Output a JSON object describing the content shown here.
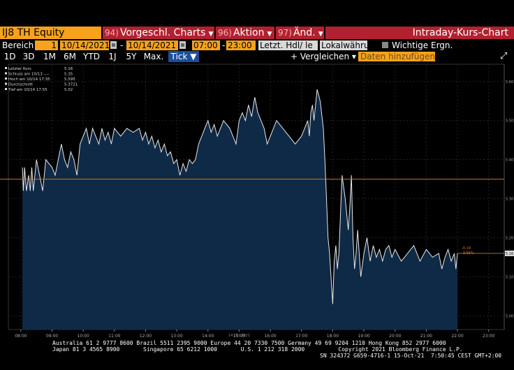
{
  "toolbar": {
    "ticker": "IJ8 TH Equity",
    "menus": [
      {
        "num": "94)",
        "label": "Vorgeschl. Charts"
      },
      {
        "num": "96)",
        "label": "Aktion"
      },
      {
        "num": "97)",
        "label": "Änd."
      }
    ],
    "title": "Intraday-Kurs-Chart"
  },
  "range": {
    "bereich_label": "Bereich",
    "bereich_value": "1",
    "start_date": "10/14/2021",
    "end_date": "10/14/2021",
    "start_time": "07:00",
    "end_time": "23:00",
    "price_type": "Letzt. Hdl/ le",
    "currency": "Lokalwähru",
    "important_events_label": "Wichtige Ergn."
  },
  "periods": [
    "1D",
    "3D",
    "1M",
    "6M",
    "YTD",
    "1J",
    "5Y",
    "Max.",
    "Tick ▼"
  ],
  "active_period": "Tick ▼",
  "compare_label": "+ Vergleichen ▾",
  "add_data_placeholder": "Daten hinzufügen",
  "legend": [
    {
      "label": "Letzter Kurs",
      "value": "5.16"
    },
    {
      "label": "Schluss am 10/13 ----",
      "value": "5.35"
    },
    {
      "label": "Hoch am 10/14 17:35",
      "value": "5.595"
    },
    {
      "label": "Durchschnitt",
      "value": "5.3721"
    },
    {
      "label": "Tief am 10/14 17:55",
      "value": "5.02"
    }
  ],
  "chart_data": {
    "type": "area",
    "x_labels": [
      "08:00",
      "09:00",
      "10:00",
      "11:00",
      "12:00",
      "13:00",
      "14:00",
      "15:00",
      "16:00",
      "17:00",
      "18:00",
      "19:00",
      "20:00",
      "21:00",
      "22:00",
      "23:00"
    ],
    "date_label": "14 Okt 2021",
    "y_ticks": [
      "5.60",
      "5.50",
      "5.40",
      "5.30",
      "5.20",
      "5.10",
      "5.00"
    ],
    "ylim": [
      4.965,
      5.63
    ],
    "previous_close": 5.35,
    "last_price_label": "5.16",
    "change_label": "-0.19",
    "change_pct_label": "-3.55%",
    "x": [
      8.05,
      8.08,
      8.12,
      8.18,
      8.25,
      8.3,
      8.35,
      8.4,
      8.5,
      8.6,
      8.7,
      8.8,
      9.0,
      9.1,
      9.2,
      9.3,
      9.4,
      9.5,
      9.6,
      9.7,
      9.75,
      9.8,
      9.9,
      10.0,
      10.1,
      10.2,
      10.3,
      10.4,
      10.5,
      10.6,
      10.7,
      10.8,
      10.9,
      11.0,
      11.2,
      11.4,
      11.6,
      11.8,
      11.9,
      12.0,
      12.1,
      12.2,
      12.3,
      12.4,
      12.5,
      12.6,
      12.7,
      12.8,
      12.9,
      13.0,
      13.1,
      13.2,
      13.3,
      13.4,
      13.5,
      13.6,
      13.7,
      13.8,
      13.9,
      14.0,
      14.1,
      14.2,
      14.3,
      14.5,
      14.7,
      14.9,
      15.0,
      15.1,
      15.2,
      15.3,
      15.4,
      15.5,
      15.6,
      15.7,
      15.8,
      15.9,
      16.0,
      16.2,
      16.4,
      16.6,
      16.8,
      17.0,
      17.1,
      17.2,
      17.25,
      17.3,
      17.35,
      17.4,
      17.5,
      17.6,
      17.7,
      17.75,
      17.8,
      17.85,
      17.9,
      18.0,
      18.05,
      18.1,
      18.15,
      18.2,
      18.3,
      18.4,
      18.5,
      18.55,
      18.6,
      18.65,
      18.7,
      18.75,
      18.8,
      18.9,
      19.0,
      19.1,
      19.2,
      19.3,
      19.4,
      19.5,
      19.6,
      19.7,
      19.8,
      19.9,
      20.0,
      20.2,
      20.4,
      20.6,
      20.8,
      21.0,
      21.2,
      21.4,
      21.5,
      21.6,
      21.7,
      21.8,
      21.9,
      21.95,
      22.0
    ],
    "y": [
      5.38,
      5.32,
      5.38,
      5.32,
      5.36,
      5.32,
      5.38,
      5.32,
      5.4,
      5.36,
      5.32,
      5.4,
      5.38,
      5.36,
      5.4,
      5.44,
      5.4,
      5.38,
      5.42,
      5.4,
      5.38,
      5.36,
      5.44,
      5.46,
      5.48,
      5.44,
      5.48,
      5.46,
      5.44,
      5.48,
      5.45,
      5.47,
      5.44,
      5.48,
      5.46,
      5.48,
      5.47,
      5.48,
      5.45,
      5.47,
      5.44,
      5.46,
      5.43,
      5.45,
      5.42,
      5.44,
      5.41,
      5.42,
      5.39,
      5.4,
      5.36,
      5.39,
      5.37,
      5.4,
      5.39,
      5.4,
      5.44,
      5.46,
      5.48,
      5.5,
      5.47,
      5.49,
      5.46,
      5.5,
      5.48,
      5.44,
      5.5,
      5.52,
      5.5,
      5.54,
      5.51,
      5.56,
      5.52,
      5.5,
      5.48,
      5.44,
      5.46,
      5.5,
      5.48,
      5.46,
      5.44,
      5.46,
      5.48,
      5.5,
      5.46,
      5.52,
      5.54,
      5.5,
      5.58,
      5.55,
      5.48,
      5.4,
      5.3,
      5.2,
      5.16,
      5.03,
      5.14,
      5.18,
      5.12,
      5.16,
      5.36,
      5.3,
      5.22,
      5.28,
      5.36,
      5.2,
      5.12,
      5.16,
      5.22,
      5.1,
      5.16,
      5.2,
      5.14,
      5.18,
      5.15,
      5.17,
      5.14,
      5.17,
      5.18,
      5.15,
      5.17,
      5.14,
      5.16,
      5.18,
      5.14,
      5.17,
      5.15,
      5.16,
      5.12,
      5.15,
      5.17,
      5.14,
      5.16,
      5.12,
      5.16
    ]
  },
  "footer": {
    "line1": "Australia 61 2 9777 8600 Brazil 5511 2395 9000 Europe 44 20 7330 7500 Germany 49 69 9204 1210 Hong Kong 852 2977 6000",
    "line2": "Japan 81 3 4565 8900       Singapore 65 6212 1000       U.S. 1 212 318 2000          Copyright 2021 Bloomberg Finance L.P.",
    "line3": "SN 324372 G659-4716-1 15-Oct-21  7:50:45 CEST GMT+2:00"
  }
}
